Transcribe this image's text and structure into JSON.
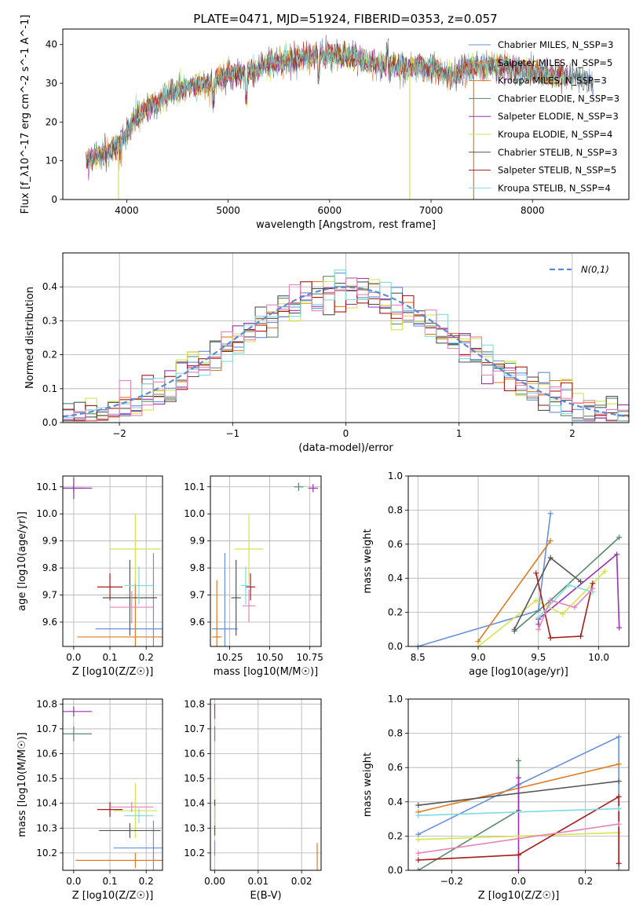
{
  "figure_title": "PLATE=0471, MJD=51924, FIBERID=0353, z=0.057",
  "colors": [
    "#6a8fdc",
    "#f0913f",
    "#e07b22",
    "#5a8a6a",
    "#9b30b0",
    "#d6e34a",
    "#555555",
    "#a61c1c",
    "#7fdbe0",
    "#e882b8"
  ],
  "chart_data": [
    {
      "type": "line",
      "name": "spectrum",
      "xlabel": "wavelength [Angstrom, rest frame]",
      "ylabel": "Flux [f_λ10^-17 erg cm^-2 s^-1 A^-1]",
      "xlim": [
        3370,
        8950
      ],
      "ylim": [
        0,
        44
      ],
      "xticks": [
        4000,
        5000,
        6000,
        7000,
        8000
      ],
      "yticks": [
        0,
        10,
        20,
        30,
        40
      ],
      "legend_position": "top-right",
      "legend": [
        "Chabrier MILES, N_SSP=3",
        "Salpeter MILES, N_SSP=5",
        "Kroupa MILES, N_SSP=3",
        "Chabrier ELODIE, N_SSP=3",
        "Salpeter ELODIE, N_SSP=3",
        "Kroupa ELODIE, N_SSP=4",
        "Chabrier STELIB, N_SSP=3",
        "Salpeter STELIB, N_SSP=5",
        "Kroupa STELIB, N_SSP=4"
      ],
      "continuum": {
        "x": [
          3600,
          3700,
          3800,
          3900,
          4000,
          4100,
          4200,
          4300,
          4400,
          4600,
          4800,
          5000,
          5200,
          5400,
          5600,
          5800,
          6000,
          6200,
          6400,
          6600,
          6800,
          7000,
          7200,
          7400,
          7600,
          7800,
          8000,
          8200,
          8400,
          8600
        ],
        "y": [
          10,
          11,
          12,
          14,
          17,
          21,
          24,
          25,
          27,
          29,
          30,
          32,
          33,
          35,
          36,
          37,
          37.5,
          37,
          35,
          35,
          34,
          34,
          32,
          34,
          34.5,
          34,
          33,
          32,
          32,
          30
        ]
      }
    },
    {
      "type": "bar",
      "name": "residual-histogram",
      "xlabel": "(data-model)/error",
      "ylabel": "Normed distribution",
      "xlim": [
        -2.5,
        2.5
      ],
      "ylim": [
        0,
        0.5
      ],
      "xticks": [
        -2,
        -1,
        0,
        1,
        2
      ],
      "yticks": [
        0.0,
        0.1,
        0.2,
        0.3,
        0.4
      ],
      "legend_position": "top-right",
      "legend": [
        "N(0,1)"
      ],
      "bin_width": 0.1
    },
    {
      "type": "scatter",
      "name": "age-vs-Z",
      "xlabel": "Z [log10(Z/Z☉)]",
      "ylabel": "age  [log10(age/yr)]",
      "xlim": [
        -0.03,
        0.245
      ],
      "ylim": [
        9.51,
        10.14
      ],
      "xticks": [
        0.0,
        0.1,
        0.2
      ],
      "yticks": [
        9.6,
        9.7,
        9.8,
        9.9,
        10.0,
        10.1
      ],
      "points": [
        {
          "x": 0.22,
          "y": 9.575,
          "xerr": 0.16,
          "yerr": 0.28,
          "c": 0
        },
        {
          "x": 0.17,
          "y": 9.545,
          "xerr": 0.16,
          "yerr": 0.21,
          "c": 2
        },
        {
          "x": 0.0,
          "y": 10.095,
          "xerr": 0.03,
          "yerr": 0.015,
          "c": 3
        },
        {
          "x": 0.0,
          "y": 10.095,
          "xerr": 0.05,
          "yerr": 0.04,
          "c": 4
        },
        {
          "x": 0.17,
          "y": 9.87,
          "xerr": 0.07,
          "yerr": 0.13,
          "c": 5
        },
        {
          "x": 0.155,
          "y": 9.69,
          "xerr": 0.075,
          "yerr": 0.14,
          "c": 6
        },
        {
          "x": 0.1,
          "y": 9.73,
          "xerr": 0.035,
          "yerr": 0.05,
          "c": 7
        },
        {
          "x": 0.18,
          "y": 9.735,
          "xerr": 0.04,
          "yerr": 0.07,
          "c": 8
        },
        {
          "x": 0.16,
          "y": 9.655,
          "xerr": 0.06,
          "yerr": 0.06,
          "c": 9
        }
      ]
    },
    {
      "type": "scatter",
      "name": "age-vs-mass",
      "xlabel": "mass [log10(M/M☉)]",
      "ylabel": "",
      "xlim": [
        10.13,
        10.82
      ],
      "ylim": [
        9.51,
        10.14
      ],
      "xticks": [
        10.25,
        10.5,
        10.75
      ],
      "yticks": [
        9.6,
        9.7,
        9.8,
        9.9,
        10.0,
        10.1
      ],
      "points": [
        {
          "x": 10.22,
          "y": 9.575,
          "xerr": 0.08,
          "yerr": 0.28,
          "c": 0
        },
        {
          "x": 10.17,
          "y": 9.545,
          "xerr": 0.03,
          "yerr": 0.21,
          "c": 2
        },
        {
          "x": 10.68,
          "y": 10.1,
          "xerr": 0.03,
          "yerr": 0.015,
          "c": 3
        },
        {
          "x": 10.77,
          "y": 10.095,
          "xerr": 0.03,
          "yerr": 0.015,
          "c": 4
        },
        {
          "x": 10.37,
          "y": 9.87,
          "xerr": 0.09,
          "yerr": 0.13,
          "c": 5
        },
        {
          "x": 10.29,
          "y": 9.69,
          "xerr": 0.03,
          "yerr": 0.14,
          "c": 6
        },
        {
          "x": 10.38,
          "y": 9.73,
          "xerr": 0.03,
          "yerr": 0.05,
          "c": 7
        },
        {
          "x": 10.35,
          "y": 9.735,
          "xerr": 0.03,
          "yerr": 0.07,
          "c": 8
        },
        {
          "x": 10.37,
          "y": 9.66,
          "xerr": 0.04,
          "yerr": 0.06,
          "c": 9
        }
      ]
    },
    {
      "type": "line",
      "name": "massweight-vs-age",
      "xlabel": "age  [log10(age/yr)]",
      "ylabel": "mass weight",
      "xlim": [
        8.42,
        10.25
      ],
      "ylim": [
        0,
        1
      ],
      "xticks": [
        8.5,
        9.0,
        9.5,
        10.0
      ],
      "yticks": [
        0.0,
        0.2,
        0.4,
        0.6,
        0.8,
        1.0
      ],
      "series": [
        {
          "c": 0,
          "x": [
            8.5,
            9.5,
            9.6
          ],
          "y": [
            0.0,
            0.21,
            0.78
          ]
        },
        {
          "c": 2,
          "x": [
            9.0,
            9.6
          ],
          "y": [
            0.03,
            0.62
          ]
        },
        {
          "c": 3,
          "x": [
            9.3,
            9.6,
            10.17
          ],
          "y": [
            0.09,
            0.27,
            0.64
          ]
        },
        {
          "c": 4,
          "x": [
            9.5,
            9.5,
            10.15,
            10.17
          ],
          "y": [
            0.13,
            0.16,
            0.54,
            0.11
          ]
        },
        {
          "c": 5,
          "x": [
            9.0,
            9.48,
            9.7,
            10.05
          ],
          "y": [
            0.0,
            0.27,
            0.19,
            0.44
          ]
        },
        {
          "c": 6,
          "x": [
            9.3,
            9.6,
            9.85
          ],
          "y": [
            0.1,
            0.52,
            0.38
          ]
        },
        {
          "c": 7,
          "x": [
            9.48,
            9.6,
            9.85,
            9.95
          ],
          "y": [
            0.43,
            0.05,
            0.06,
            0.37
          ]
        },
        {
          "c": 8,
          "x": [
            9.5,
            9.75,
            9.95
          ],
          "y": [
            0.17,
            0.36,
            0.32
          ]
        },
        {
          "c": 9,
          "x": [
            9.5,
            9.6,
            9.8,
            9.95
          ],
          "y": [
            0.1,
            0.27,
            0.23,
            0.34
          ]
        }
      ]
    },
    {
      "type": "scatter",
      "name": "mass-vs-Z",
      "xlabel": "Z [log10(Z/Z☉)]",
      "ylabel": "mass [log10(M/M☉)]",
      "xlim": [
        -0.03,
        0.245
      ],
      "ylim": [
        10.13,
        10.82
      ],
      "xticks": [
        0.0,
        0.1,
        0.2
      ],
      "yticks": [
        10.2,
        10.3,
        10.4,
        10.5,
        10.6,
        10.7,
        10.8
      ],
      "points": [
        {
          "x": 0.22,
          "y": 10.22,
          "xerr": 0.11,
          "yerr": 0.11,
          "c": 0
        },
        {
          "x": 0.17,
          "y": 10.17,
          "xerr": 0.165,
          "yerr": 0.03,
          "c": 2
        },
        {
          "x": 0.0,
          "y": 10.68,
          "xerr": 0.05,
          "yerr": 0.03,
          "c": 3
        },
        {
          "x": 0.0,
          "y": 10.77,
          "xerr": 0.05,
          "yerr": 0.02,
          "c": 4
        },
        {
          "x": 0.17,
          "y": 10.37,
          "xerr": 0.06,
          "yerr": 0.11,
          "c": 5
        },
        {
          "x": 0.155,
          "y": 10.29,
          "xerr": 0.085,
          "yerr": 0.03,
          "c": 6
        },
        {
          "x": 0.1,
          "y": 10.375,
          "xerr": 0.035,
          "yerr": 0.03,
          "c": 7
        },
        {
          "x": 0.18,
          "y": 10.35,
          "xerr": 0.04,
          "yerr": 0.03,
          "c": 8
        },
        {
          "x": 0.16,
          "y": 10.385,
          "xerr": 0.06,
          "yerr": 0.02,
          "c": 9
        }
      ]
    },
    {
      "type": "scatter",
      "name": "mass-vs-EBV",
      "xlabel": "E(B-V)",
      "ylabel": "",
      "xlim": [
        -0.001,
        0.0245
      ],
      "ylim": [
        10.13,
        10.82
      ],
      "xticks": [
        0.0,
        0.01,
        0.02
      ],
      "yticks": [
        10.2,
        10.3,
        10.4,
        10.5,
        10.6,
        10.7,
        10.8
      ],
      "points": [
        {
          "x": 0.0,
          "y": 10.22,
          "xerr": 0,
          "yerr": 0.03,
          "c": 0
        },
        {
          "x": 0.0236,
          "y": 10.17,
          "xerr": 0,
          "yerr": 0.07,
          "c": 2
        },
        {
          "x": 0.0,
          "y": 10.68,
          "xerr": 0,
          "yerr": 0.03,
          "c": 3
        },
        {
          "x": 0.0,
          "y": 10.77,
          "xerr": 0,
          "yerr": 0.03,
          "c": 4
        },
        {
          "x": 0.0,
          "y": 10.37,
          "xerr": 0,
          "yerr": 0.11,
          "c": 5
        },
        {
          "x": 0.0,
          "y": 10.3,
          "xerr": 0,
          "yerr": 0.03,
          "c": 6
        },
        {
          "x": 0.0,
          "y": 10.375,
          "xerr": 0,
          "yerr": 0.04,
          "c": 7
        },
        {
          "x": 0.0,
          "y": 10.35,
          "xerr": 0,
          "yerr": 0.04,
          "c": 8
        }
      ]
    },
    {
      "type": "line",
      "name": "massweight-vs-Z",
      "xlabel": "Z [log10(Z/Z☉)]",
      "ylabel": "mass weight",
      "xlim": [
        -0.33,
        0.33
      ],
      "ylim": [
        0,
        1
      ],
      "xticks": [
        -0.2,
        0.0,
        0.2
      ],
      "yticks": [
        0.0,
        0.2,
        0.4,
        0.6,
        0.8,
        1.0
      ],
      "series": [
        {
          "c": 0,
          "x": [
            -0.3,
            0.0,
            0.3,
            0.3
          ],
          "y": [
            0.21,
            0.5,
            0.78,
            0.0
          ]
        },
        {
          "c": 2,
          "x": [
            -0.3,
            0.3
          ],
          "y": [
            0.34,
            0.62
          ]
        },
        {
          "c": 3,
          "x": [
            -0.3,
            0.0,
            0.0
          ],
          "y": [
            0.0,
            0.35,
            0.64
          ]
        },
        {
          "c": 4,
          "x": [
            0.0,
            0.0
          ],
          "y": [
            0.0,
            0.54
          ]
        },
        {
          "c": 5,
          "x": [
            -0.3,
            0.3
          ],
          "y": [
            0.18,
            0.22
          ]
        },
        {
          "c": 6,
          "x": [
            -0.3,
            0.3
          ],
          "y": [
            0.38,
            0.52
          ]
        },
        {
          "c": 7,
          "x": [
            -0.3,
            0.0,
            0.0,
            0.3,
            0.3
          ],
          "y": [
            0.06,
            0.09,
            0.09,
            0.43,
            0.04
          ]
        },
        {
          "c": 8,
          "x": [
            -0.3,
            0.3
          ],
          "y": [
            0.32,
            0.36
          ]
        },
        {
          "c": 9,
          "x": [
            -0.3,
            0.3
          ],
          "y": [
            0.1,
            0.27
          ]
        }
      ]
    }
  ]
}
